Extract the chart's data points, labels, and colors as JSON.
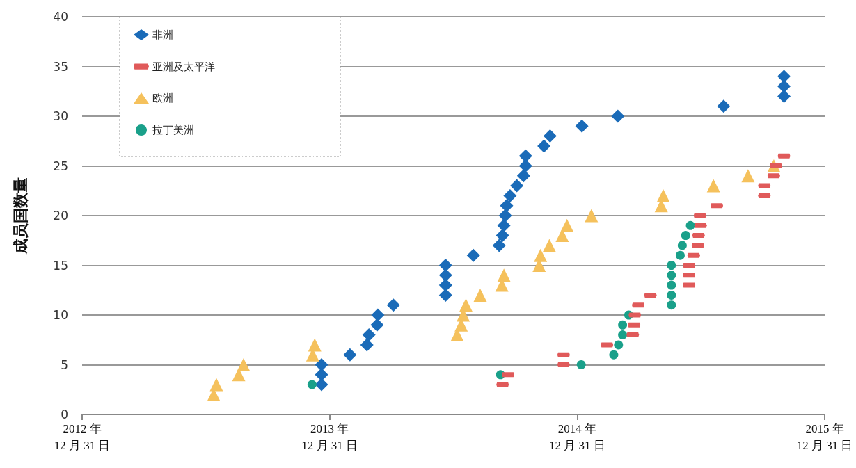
{
  "chart_data": {
    "type": "scatter",
    "ylabel": "成员国数量",
    "xlim": [
      "2012-12-31",
      "2015-12-31"
    ],
    "xticks": [
      {
        "value": "2012-12-31",
        "label": "2012 年\n12 月 31 日"
      },
      {
        "value": "2013-12-31",
        "label": "2013 年\n12 月 31 日"
      },
      {
        "value": "2014-12-31",
        "label": "2014 年\n12 月 31 日"
      },
      {
        "value": "2015-12-31",
        "label": "2015 年\n12 月 31 日"
      }
    ],
    "ylim": [
      0,
      40
    ],
    "yticks": [
      0,
      5,
      10,
      15,
      20,
      25,
      30,
      35,
      40
    ],
    "grid": "y",
    "legend": "top left",
    "series": [
      {
        "name": "非洲",
        "color": "#1a6bb8",
        "marker": "diamond",
        "x": [
          "2013-12-19",
          "2013-12-19",
          "2013-12-19",
          "2014-01-30",
          "2014-02-24",
          "2014-02-27",
          "2014-03-11",
          "2014-03-12",
          "2014-04-04",
          "2014-06-20",
          "2014-06-20",
          "2014-06-20",
          "2014-06-20",
          "2014-07-31",
          "2014-09-07",
          "2014-09-12",
          "2014-09-14",
          "2014-09-16",
          "2014-09-18",
          "2014-09-23",
          "2014-10-03",
          "2014-10-13",
          "2014-10-16",
          "2014-10-16",
          "2014-11-12",
          "2014-11-21",
          "2015-01-07",
          "2015-03-01",
          "2015-08-04",
          "2015-11-01",
          "2015-11-01",
          "2015-11-01"
        ],
        "values": [
          3,
          4,
          5,
          6,
          7,
          8,
          9,
          10,
          11,
          12,
          13,
          14,
          15,
          16,
          17,
          18,
          19,
          20,
          21,
          22,
          23,
          24,
          25,
          26,
          27,
          28,
          29,
          30,
          31,
          32,
          33,
          34
        ]
      },
      {
        "name": "亚洲及太平洋",
        "color": "#e05a5a",
        "x": [
          "2014-09-12",
          "2014-09-20",
          "2014-12-11",
          "2014-12-11",
          "2015-02-13",
          "2015-03-23",
          "2015-03-25",
          "2015-03-26",
          "2015-03-31",
          "2015-04-18",
          "2015-06-14",
          "2015-06-14",
          "2015-06-14",
          "2015-06-21",
          "2015-06-27",
          "2015-06-28",
          "2015-07-01",
          "2015-06-30",
          "2015-07-25",
          "2015-10-03",
          "2015-10-03",
          "2015-10-17",
          "2015-10-20",
          "2015-11-01"
        ],
        "values": [
          3,
          4,
          5,
          6,
          7,
          8,
          9,
          10,
          11,
          12,
          13,
          14,
          15,
          16,
          17,
          18,
          19,
          20,
          21,
          22,
          23,
          24,
          25,
          26
        ]
      },
      {
        "name": "欧洲",
        "color": "#f5c15c",
        "marker": "triangle",
        "x": [
          "2013-07-13",
          "2013-07-17",
          "2013-08-19",
          "2013-08-26",
          "2013-12-06",
          "2013-12-09",
          "2014-07-07",
          "2014-07-13",
          "2014-07-16",
          "2014-07-20",
          "2014-08-10",
          "2014-09-11",
          "2014-09-14",
          "2014-11-05",
          "2014-11-07",
          "2014-11-20",
          "2014-12-09",
          "2014-12-16",
          "2015-01-21",
          "2015-05-04",
          "2015-05-07",
          "2015-07-20",
          "2015-09-09",
          "2015-10-17"
        ],
        "values": [
          2,
          3,
          4,
          5,
          6,
          7,
          8,
          9,
          10,
          11,
          12,
          13,
          14,
          15,
          16,
          17,
          18,
          19,
          20,
          21,
          22,
          23,
          24,
          25
        ]
      },
      {
        "name": "拉丁美洲",
        "color": "#1aa08a",
        "marker": "circle",
        "x": [
          "2013-12-05",
          "2014-09-09",
          "2015-01-06",
          "2015-02-23",
          "2015-03-02",
          "2015-03-08",
          "2015-03-08",
          "2015-03-17",
          "2015-05-19",
          "2015-05-19",
          "2015-05-19",
          "2015-05-19",
          "2015-05-19",
          "2015-06-01",
          "2015-06-04",
          "2015-06-09",
          "2015-06-16"
        ],
        "values": [
          3,
          4,
          5,
          6,
          7,
          8,
          9,
          10,
          11,
          12,
          13,
          14,
          15,
          16,
          17,
          18,
          19
        ]
      }
    ]
  }
}
